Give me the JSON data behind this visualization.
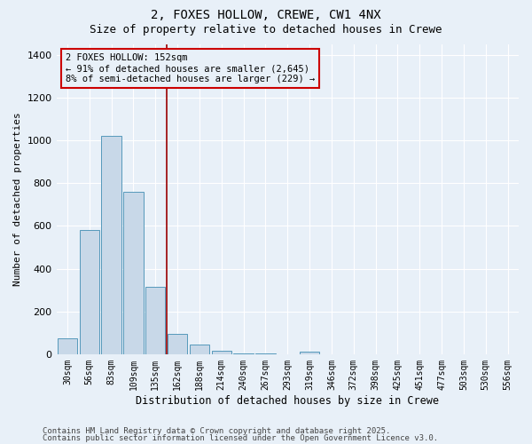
{
  "title1": "2, FOXES HOLLOW, CREWE, CW1 4NX",
  "title2": "Size of property relative to detached houses in Crewe",
  "xlabel": "Distribution of detached houses by size in Crewe",
  "ylabel": "Number of detached properties",
  "categories": [
    "30sqm",
    "56sqm",
    "83sqm",
    "109sqm",
    "135sqm",
    "162sqm",
    "188sqm",
    "214sqm",
    "240sqm",
    "267sqm",
    "293sqm",
    "319sqm",
    "346sqm",
    "372sqm",
    "398sqm",
    "425sqm",
    "451sqm",
    "477sqm",
    "503sqm",
    "530sqm",
    "556sqm"
  ],
  "values": [
    75,
    580,
    1020,
    760,
    315,
    95,
    45,
    15,
    5,
    2,
    0,
    10,
    0,
    0,
    0,
    0,
    0,
    0,
    0,
    0,
    0
  ],
  "bar_color": "#c8d8e8",
  "bar_edge_color": "#5599bb",
  "vline_x": 4.5,
  "vline_color": "#990000",
  "ann_line1": "2 FOXES HOLLOW: 152sqm",
  "ann_line2": "← 91% of detached houses are smaller (2,645)",
  "ann_line3": "8% of semi-detached houses are larger (229) →",
  "ylim": [
    0,
    1450
  ],
  "yticks": [
    0,
    200,
    400,
    600,
    800,
    1000,
    1200,
    1400
  ],
  "bg_color": "#e8f0f8",
  "grid_color": "#ffffff",
  "footer1": "Contains HM Land Registry data © Crown copyright and database right 2025.",
  "footer2": "Contains public sector information licensed under the Open Government Licence v3.0.",
  "title1_fontsize": 10,
  "title2_fontsize": 9,
  "tick_fontsize": 7,
  "ylabel_fontsize": 8,
  "xlabel_fontsize": 8.5,
  "ann_fontsize": 7.5,
  "footer_fontsize": 6.5
}
